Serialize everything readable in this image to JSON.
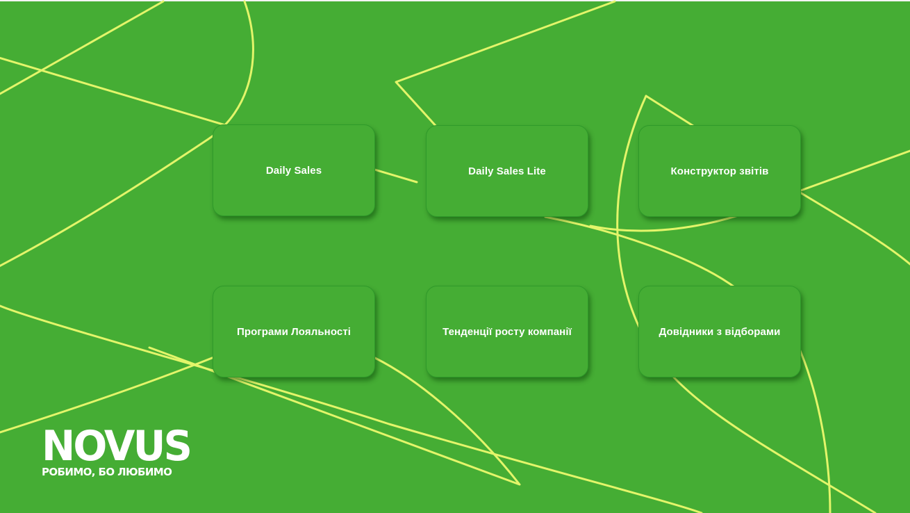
{
  "tiles": [
    {
      "label": "Daily Sales"
    },
    {
      "label": "Daily Sales Lite"
    },
    {
      "label": "Конструктор звітів"
    },
    {
      "label": "Програми Лояльності"
    },
    {
      "label": "Тенденції росту компанії"
    },
    {
      "label": "Довідники з відборами"
    }
  ],
  "logo": {
    "word": "NOVUS",
    "tagline": "РОБИМО, БО ЛЮБИМО"
  },
  "colors": {
    "background": "#45ad34",
    "line": "#e3f56a",
    "text": "#ffffff"
  }
}
